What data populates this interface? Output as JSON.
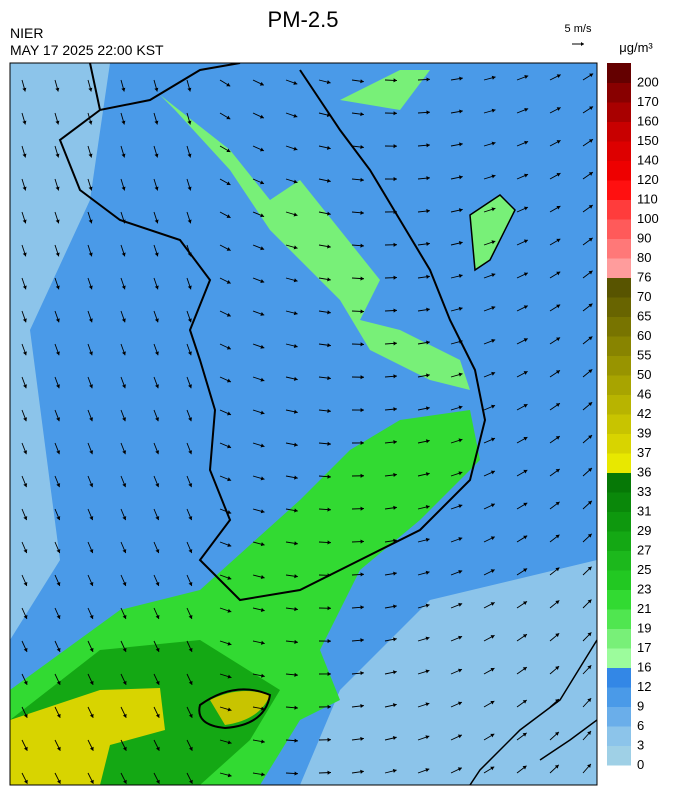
{
  "header": {
    "title": "PM-2.5",
    "agency": "NIER",
    "datetime": "MAY 17 2025 22:00 KST",
    "wind_scale": "5 m/s"
  },
  "colorbar": {
    "unit": "μg/m³",
    "ticks": [
      0,
      3,
      6,
      9,
      12,
      16,
      17,
      19,
      21,
      23,
      25,
      27,
      29,
      31,
      33,
      36,
      37,
      39,
      42,
      46,
      50,
      55,
      60,
      65,
      70,
      76,
      80,
      90,
      100,
      110,
      120,
      140,
      150,
      160,
      170,
      200
    ],
    "colors": [
      "#9fd0e6",
      "#8cc4ea",
      "#6aaeea",
      "#4a9ae8",
      "#3387e6",
      "#9cfc9c",
      "#78f078",
      "#50e650",
      "#32da32",
      "#22c822",
      "#1cb81c",
      "#14a814",
      "#0e980e",
      "#0a880a",
      "#067806",
      "#e8e800",
      "#d8d400",
      "#c8c400",
      "#b8b400",
      "#a8a400",
      "#989400",
      "#888400",
      "#787400",
      "#686400",
      "#585400",
      "#ff9c9c",
      "#ff7878",
      "#ff5a5a",
      "#ff3c3c",
      "#ff1010",
      "#ee0000",
      "#dd0000",
      "#c80000",
      "#a80000",
      "#880000",
      "#640000"
    ]
  }
}
